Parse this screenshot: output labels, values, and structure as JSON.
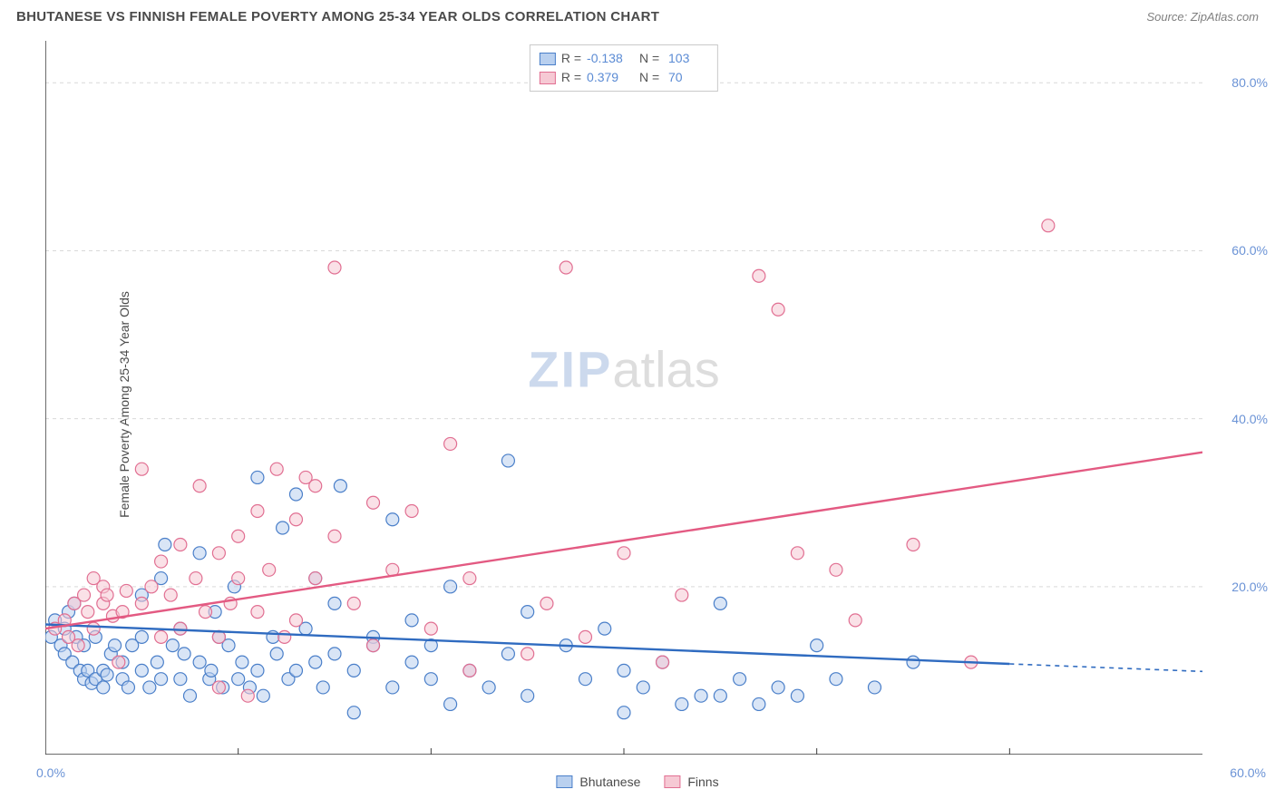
{
  "header": {
    "title": "BHUTANESE VS FINNISH FEMALE POVERTY AMONG 25-34 YEAR OLDS CORRELATION CHART",
    "source": "Source: ZipAtlas.com"
  },
  "chart": {
    "type": "scatter",
    "xlim": [
      0,
      60
    ],
    "ylim": [
      0,
      85
    ],
    "x_tick_step": 10,
    "y_ticks": [
      20,
      40,
      60,
      80
    ],
    "y_tick_labels": [
      "20.0%",
      "40.0%",
      "60.0%",
      "80.0%"
    ],
    "x_origin_label": "0.0%",
    "x_max_label": "60.0%",
    "y_axis_label": "Female Poverty Among 25-34 Year Olds",
    "axis_color": "#3c3c3c",
    "grid_color": "#d9d9d9",
    "grid_dash": "4,4",
    "tick_label_color": "#6b93d6",
    "background_color": "#ffffff",
    "marker_radius": 7,
    "marker_stroke_width": 1.2,
    "trend_line_width": 2.4,
    "trend_dash_width": 1.6,
    "series": [
      {
        "name": "Bhutanese",
        "fill": "#b9d0ef",
        "stroke": "#4a7fc9",
        "fill_opacity": 0.55,
        "R": "-0.138",
        "N": "103",
        "trend": {
          "x1": 0,
          "y1": 15.5,
          "x2": 50,
          "y2": 10.8,
          "dash_x2": 60,
          "dash_y2": 9.9,
          "color": "#2f6bc0"
        },
        "points": [
          [
            0.3,
            14
          ],
          [
            0.5,
            16
          ],
          [
            0.8,
            13
          ],
          [
            1,
            15
          ],
          [
            1,
            12
          ],
          [
            1.2,
            17
          ],
          [
            1.4,
            11
          ],
          [
            1.6,
            14
          ],
          [
            1.5,
            18
          ],
          [
            1.8,
            10
          ],
          [
            2,
            13
          ],
          [
            2,
            9
          ],
          [
            2.2,
            10
          ],
          [
            2.4,
            8.5
          ],
          [
            2.6,
            9
          ],
          [
            2.6,
            14
          ],
          [
            3,
            10
          ],
          [
            3,
            8
          ],
          [
            3.2,
            9.5
          ],
          [
            3.4,
            12
          ],
          [
            3.6,
            13
          ],
          [
            4,
            9
          ],
          [
            4,
            11
          ],
          [
            4.3,
            8
          ],
          [
            4.5,
            13
          ],
          [
            5,
            10
          ],
          [
            5,
            14
          ],
          [
            5,
            19
          ],
          [
            5.4,
            8
          ],
          [
            5.8,
            11
          ],
          [
            6,
            9
          ],
          [
            6,
            21
          ],
          [
            6.2,
            25
          ],
          [
            6.6,
            13
          ],
          [
            7,
            9
          ],
          [
            7,
            15
          ],
          [
            7.2,
            12
          ],
          [
            7.5,
            7
          ],
          [
            8,
            11
          ],
          [
            8,
            24
          ],
          [
            8.5,
            9
          ],
          [
            8.6,
            10
          ],
          [
            8.8,
            17
          ],
          [
            9,
            14
          ],
          [
            9.2,
            8
          ],
          [
            9.5,
            13
          ],
          [
            9.8,
            20
          ],
          [
            10,
            9
          ],
          [
            10.2,
            11
          ],
          [
            10.6,
            8
          ],
          [
            11,
            10
          ],
          [
            11,
            33
          ],
          [
            11.3,
            7
          ],
          [
            11.8,
            14
          ],
          [
            12,
            12
          ],
          [
            12.3,
            27
          ],
          [
            12.6,
            9
          ],
          [
            13,
            10
          ],
          [
            13,
            31
          ],
          [
            13.5,
            15
          ],
          [
            14,
            11
          ],
          [
            14,
            21
          ],
          [
            14.4,
            8
          ],
          [
            15,
            18
          ],
          [
            15,
            12
          ],
          [
            15.3,
            32
          ],
          [
            16,
            10
          ],
          [
            16,
            5
          ],
          [
            17,
            14
          ],
          [
            17,
            13
          ],
          [
            18,
            8
          ],
          [
            18,
            28
          ],
          [
            19,
            11
          ],
          [
            19,
            16
          ],
          [
            20,
            9
          ],
          [
            20,
            13
          ],
          [
            21,
            6
          ],
          [
            21,
            20
          ],
          [
            22,
            10
          ],
          [
            23,
            8
          ],
          [
            24,
            12
          ],
          [
            24,
            35
          ],
          [
            25,
            7
          ],
          [
            25,
            17
          ],
          [
            27,
            13
          ],
          [
            28,
            9
          ],
          [
            29,
            15
          ],
          [
            30,
            10
          ],
          [
            30,
            5
          ],
          [
            31,
            8
          ],
          [
            32,
            11
          ],
          [
            33,
            6
          ],
          [
            34,
            7
          ],
          [
            35,
            7
          ],
          [
            35,
            18
          ],
          [
            36,
            9
          ],
          [
            37,
            6
          ],
          [
            38,
            8
          ],
          [
            39,
            7
          ],
          [
            40,
            13
          ],
          [
            41,
            9
          ],
          [
            43,
            8
          ],
          [
            45,
            11
          ]
        ]
      },
      {
        "name": "Finns",
        "fill": "#f6c9d4",
        "stroke": "#e16f92",
        "fill_opacity": 0.55,
        "R": "0.379",
        "N": "70",
        "trend": {
          "x1": 0,
          "y1": 15,
          "x2": 60,
          "y2": 36,
          "color": "#e35a82"
        },
        "points": [
          [
            0.5,
            15
          ],
          [
            1,
            16
          ],
          [
            1.2,
            14
          ],
          [
            1.5,
            18
          ],
          [
            1.7,
            13
          ],
          [
            2,
            19
          ],
          [
            2.2,
            17
          ],
          [
            2.5,
            15
          ],
          [
            2.5,
            21
          ],
          [
            3,
            18
          ],
          [
            3,
            20
          ],
          [
            3.2,
            19
          ],
          [
            3.5,
            16.5
          ],
          [
            3.8,
            11
          ],
          [
            4,
            17
          ],
          [
            4.2,
            19.5
          ],
          [
            5,
            18
          ],
          [
            5,
            34
          ],
          [
            5.5,
            20
          ],
          [
            6,
            23
          ],
          [
            6,
            14
          ],
          [
            6.5,
            19
          ],
          [
            7,
            25
          ],
          [
            7,
            15
          ],
          [
            7.8,
            21
          ],
          [
            8,
            32
          ],
          [
            8.3,
            17
          ],
          [
            9,
            24
          ],
          [
            9,
            14
          ],
          [
            9,
            8
          ],
          [
            9.6,
            18
          ],
          [
            10,
            26
          ],
          [
            10,
            21
          ],
          [
            10.5,
            7
          ],
          [
            11,
            29
          ],
          [
            11,
            17
          ],
          [
            11.6,
            22
          ],
          [
            12,
            34
          ],
          [
            12.4,
            14
          ],
          [
            13,
            28
          ],
          [
            13,
            16
          ],
          [
            13.5,
            33
          ],
          [
            14,
            21
          ],
          [
            14,
            32
          ],
          [
            15,
            26
          ],
          [
            15,
            58
          ],
          [
            16,
            18
          ],
          [
            17,
            30
          ],
          [
            17,
            13
          ],
          [
            18,
            22
          ],
          [
            19,
            29
          ],
          [
            20,
            15
          ],
          [
            21,
            37
          ],
          [
            22,
            10
          ],
          [
            22,
            21
          ],
          [
            25,
            12
          ],
          [
            26,
            18
          ],
          [
            27,
            58
          ],
          [
            28,
            14
          ],
          [
            30,
            24
          ],
          [
            32,
            11
          ],
          [
            33,
            19
          ],
          [
            37,
            57
          ],
          [
            38,
            53
          ],
          [
            39,
            24
          ],
          [
            41,
            22
          ],
          [
            42,
            16
          ],
          [
            45,
            25
          ],
          [
            48,
            11
          ],
          [
            52,
            63
          ]
        ]
      }
    ],
    "legend_bottom": [
      {
        "label": "Bhutanese",
        "fill": "#b9d0ef",
        "stroke": "#4a7fc9"
      },
      {
        "label": "Finns",
        "fill": "#f6c9d4",
        "stroke": "#e16f92"
      }
    ],
    "watermark": {
      "zip": "ZIP",
      "atlas": "atlas"
    }
  }
}
